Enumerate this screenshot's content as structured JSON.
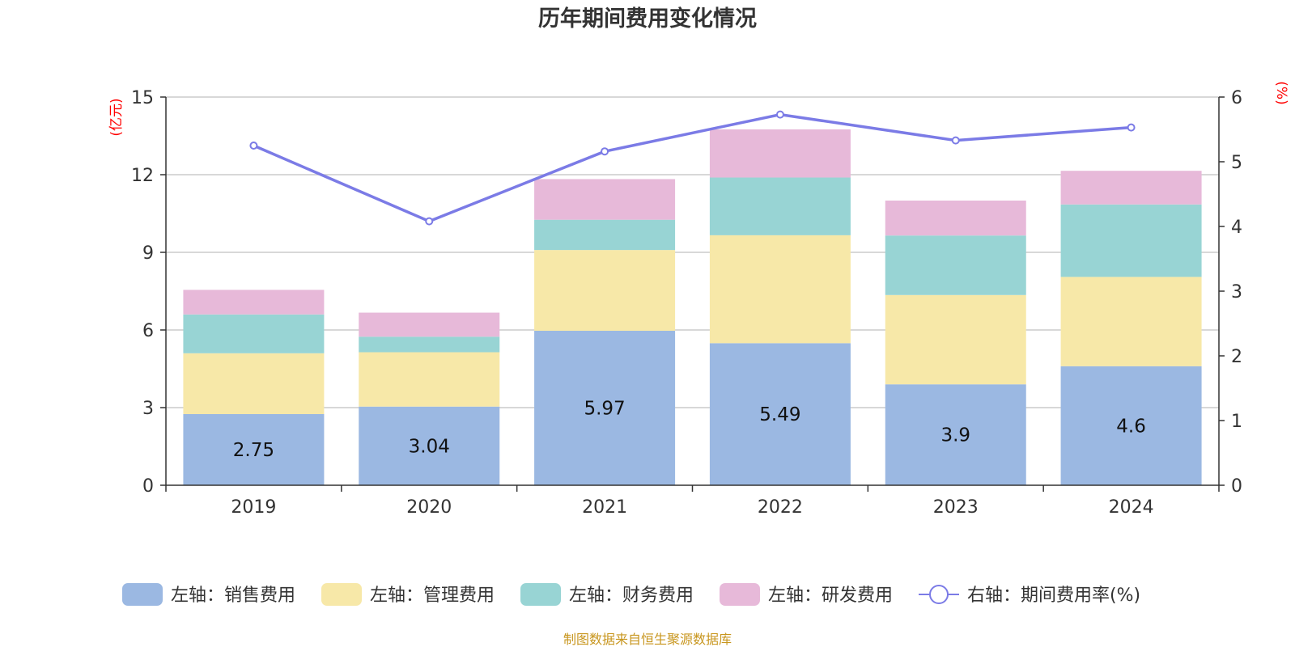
{
  "chart_data": {
    "type": "bar",
    "stacked": true,
    "title": "历年期间费用变化情况",
    "categories": [
      "2019",
      "2020",
      "2021",
      "2022",
      "2023",
      "2024"
    ],
    "left_axis": {
      "unit_label": "(亿元)",
      "min": 0,
      "max": 15,
      "ticks": [
        "0",
        "3",
        "6",
        "9",
        "12",
        "15"
      ],
      "tick_values": [
        0,
        3,
        6,
        9,
        12,
        15
      ]
    },
    "right_axis": {
      "unit_label": "(%)",
      "min": 0,
      "max": 6,
      "ticks": [
        "0",
        "1",
        "2",
        "3",
        "4",
        "5",
        "6"
      ],
      "tick_values": [
        0,
        1,
        2,
        3,
        4,
        5,
        6
      ]
    },
    "series": [
      {
        "name": "左轴：销售费用",
        "color": "#9bb8e2",
        "values": [
          2.75,
          3.04,
          5.97,
          5.49,
          3.9,
          4.6
        ],
        "labels": [
          "2.75",
          "3.04",
          "5.97",
          "5.49",
          "3.9",
          "4.6"
        ]
      },
      {
        "name": "左轴：管理费用",
        "color": "#f7e8a8",
        "values": [
          2.35,
          2.1,
          3.12,
          4.17,
          3.45,
          3.45
        ]
      },
      {
        "name": "左轴：财务费用",
        "color": "#98d4d4",
        "values": [
          1.5,
          0.6,
          1.17,
          2.23,
          2.3,
          2.8
        ]
      },
      {
        "name": "左轴：研发费用",
        "color": "#e7b9d9",
        "values": [
          0.95,
          0.93,
          1.57,
          1.86,
          1.35,
          1.3
        ]
      }
    ],
    "line_series": {
      "name": "右轴：期间费用率(%)",
      "color": "#7b7be6",
      "axis": "right",
      "values": [
        5.25,
        4.08,
        5.16,
        5.73,
        5.33,
        5.53
      ]
    },
    "legend_position": "bottom",
    "grid": true
  },
  "footer": {
    "source": "制图数据来自恒生聚源数据库"
  }
}
